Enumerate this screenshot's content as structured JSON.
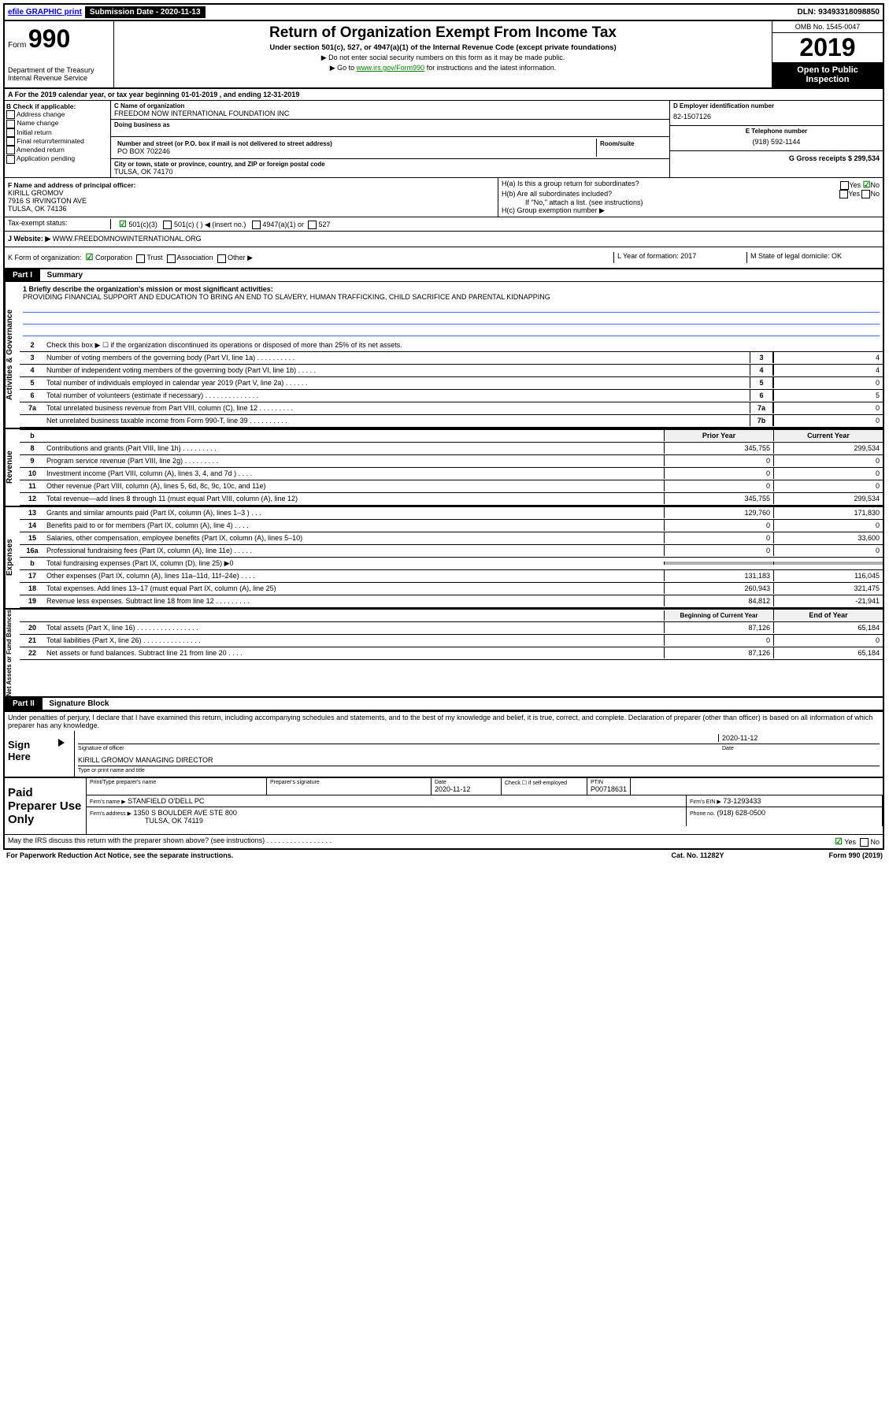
{
  "top": {
    "efile": "efile GRAPHIC print",
    "submission": "Submission Date - 2020-11-13",
    "dln": "DLN: 93493318098850"
  },
  "header": {
    "formLabel": "Form",
    "form990": "990",
    "dept1": "Department of the Treasury",
    "dept2": "Internal Revenue Service",
    "title": "Return of Organization Exempt From Income Tax",
    "subtitle": "Under section 501(c), 527, or 4947(a)(1) of the Internal Revenue Code (except private foundations)",
    "inst1": "▶ Do not enter social security numbers on this form as it may be made public.",
    "inst2a": "▶ Go to ",
    "inst2link": "www.irs.gov/Form990",
    "inst2b": " for instructions and the latest information.",
    "omb": "OMB No. 1545-0047",
    "year": "2019",
    "public": "Open to Public Inspection"
  },
  "period": "A For the 2019 calendar year, or tax year beginning 01-01-2019    , and ending 12-31-2019",
  "checkB": {
    "label": "B Check if applicable:",
    "items": [
      "Address change",
      "Name change",
      "Initial return",
      "Final return/terminated",
      "Amended return",
      "Application pending"
    ]
  },
  "org": {
    "nameLabel": "C Name of organization",
    "name": "FREEDOM NOW INTERNATIONAL FOUNDATION INC",
    "dbaLabel": "Doing business as",
    "addrLabel": "Number and street (or P.O. box if mail is not delivered to street address)",
    "addr": "PO BOX 702246",
    "roomLabel": "Room/suite",
    "cityLabel": "City or town, state or province, country, and ZIP or foreign postal code",
    "city": "TULSA, OK  74170"
  },
  "right": {
    "einLabel": "D Employer identification number",
    "ein": "82-1507126",
    "phoneLabel": "E Telephone number",
    "phone": "(918) 592-1144",
    "grossLabel": "G Gross receipts $ 299,534"
  },
  "officer": {
    "label": "F  Name and address of principal officer:",
    "name": "KIRILL GROMOV",
    "addr": "7916 S IRVINGTON AVE",
    "city": "TULSA, OK  74136"
  },
  "hSection": {
    "ha": "H(a)  Is this a group return for subordinates?",
    "hb": "H(b)  Are all subordinates included?",
    "hbNote": "If \"No,\" attach a list. (see instructions)",
    "hc": "H(c)  Group exemption number ▶",
    "yes": "Yes",
    "no": "No"
  },
  "taxStatus": {
    "label": "Tax-exempt status:",
    "opts": [
      "501(c)(3)",
      "501(c) (  ) ◀ (insert no.)",
      "4947(a)(1) or",
      "527"
    ]
  },
  "website": {
    "label": "J  Website: ▶",
    "value": "WWW.FREEDOMNOWINTERNATIONAL.ORG"
  },
  "kRow": {
    "label": "K Form of organization:",
    "opts": [
      "Corporation",
      "Trust",
      "Association",
      "Other ▶"
    ],
    "yearLabel": "L Year of formation: 2017",
    "stateLabel": "M State of legal domicile: OK"
  },
  "part1": {
    "header": "Part I",
    "title": "Summary",
    "mission": "1  Briefly describe the organization's mission or most significant activities:",
    "missionText": "PROVIDING FINANCIAL SUPPORT AND EDUCATION TO BRING AN END TO SLAVERY, HUMAN TRAFFICKING, CHILD SACRIFICE AND PARENTAL KIDNAPPING"
  },
  "governance": {
    "sideLabel": "Activities & Governance",
    "line2": "Check this box ▶ ☐ if the organization discontinued its operations or disposed of more than 25% of its net assets.",
    "lines": [
      {
        "n": "3",
        "t": "Number of voting members of the governing body (Part VI, line 1a)  .  .  .  .  .  .  .  .  .  .",
        "b": "3",
        "v": "4"
      },
      {
        "n": "4",
        "t": "Number of independent voting members of the governing body (Part VI, line 1b)  .  .  .  .  .",
        "b": "4",
        "v": "4"
      },
      {
        "n": "5",
        "t": "Total number of individuals employed in calendar year 2019 (Part V, line 2a)  .  .  .  .  .  .",
        "b": "5",
        "v": "0"
      },
      {
        "n": "6",
        "t": "Total number of volunteers (estimate if necessary)   .  .  .  .  .  .  .  .  .  .  .  .  .  .",
        "b": "6",
        "v": "5"
      },
      {
        "n": "7a",
        "t": "Total unrelated business revenue from Part VIII, column (C), line 12  .  .  .  .  .  .  .  .  .",
        "b": "7a",
        "v": "0"
      },
      {
        "n": "",
        "t": "Net unrelated business taxable income from Form 990-T, line 39   .  .  .  .  .  .  .  .  .  .",
        "b": "7b",
        "v": "0"
      }
    ]
  },
  "revenue": {
    "sideLabel": "Revenue",
    "priorHeader": "Prior Year",
    "currentHeader": "Current Year",
    "lines": [
      {
        "n": "8",
        "t": "Contributions and grants (Part VIII, line 1h)   .  .  .  .  .  .  .  .  .",
        "p": "345,755",
        "c": "299,534"
      },
      {
        "n": "9",
        "t": "Program service revenue (Part VIII, line 2g)   .  .  .  .  .  .  .  .  .",
        "p": "0",
        "c": "0"
      },
      {
        "n": "10",
        "t": "Investment income (Part VIII, column (A), lines 3, 4, and 7d )   .  .  .  .",
        "p": "0",
        "c": "0"
      },
      {
        "n": "11",
        "t": "Other revenue (Part VIII, column (A), lines 5, 6d, 8c, 9c, 10c, and 11e)",
        "p": "0",
        "c": "0"
      },
      {
        "n": "12",
        "t": "Total revenue—add lines 8 through 11 (must equal Part VIII, column (A), line 12)",
        "p": "345,755",
        "c": "299,534"
      }
    ]
  },
  "expenses": {
    "sideLabel": "Expenses",
    "lines": [
      {
        "n": "13",
        "t": "Grants and similar amounts paid (Part IX, column (A), lines 1–3 )  .   .   .",
        "p": "129,760",
        "c": "171,830"
      },
      {
        "n": "14",
        "t": "Benefits paid to or for members (Part IX, column (A), line 4)  .   .   .   .",
        "p": "0",
        "c": "0"
      },
      {
        "n": "15",
        "t": "Salaries, other compensation, employee benefits (Part IX, column (A), lines 5–10)",
        "p": "0",
        "c": "33,600"
      },
      {
        "n": "16a",
        "t": "Professional fundraising fees (Part IX, column (A), line 11e)  .  .  .  .  .",
        "p": "0",
        "c": "0"
      },
      {
        "n": "b",
        "t": "Total fundraising expenses (Part IX, column (D), line 25) ▶0",
        "p": "",
        "c": "",
        "gray": true
      },
      {
        "n": "17",
        "t": "Other expenses (Part IX, column (A), lines 11a–11d, 11f–24e)  .   .   .   .",
        "p": "131,183",
        "c": "116,045"
      },
      {
        "n": "18",
        "t": "Total expenses. Add lines 13–17 (must equal Part IX, column (A), line 25)",
        "p": "260,943",
        "c": "321,475"
      },
      {
        "n": "19",
        "t": "Revenue less expenses. Subtract line 18 from line 12  .  .  .  .  .  .  .  .  .",
        "p": "84,812",
        "c": "-21,941"
      }
    ]
  },
  "netAssets": {
    "sideLabel": "Net Assets or Fund Balances",
    "beginHeader": "Beginning of Current Year",
    "endHeader": "End of Year",
    "lines": [
      {
        "n": "20",
        "t": "Total assets (Part X, line 16)  .  .  .  .  .  .  .  .  .  .  .  .  .  .  .  .",
        "p": "87,126",
        "c": "65,184"
      },
      {
        "n": "21",
        "t": "Total liabilities (Part X, line 26)  .  .  .  .  .  .  .  .  .  .  .  .  .  .  .",
        "p": "0",
        "c": "0"
      },
      {
        "n": "22",
        "t": "Net assets or fund balances. Subtract line 21 from line 20  .   .   .   .",
        "p": "87,126",
        "c": "65,184"
      }
    ]
  },
  "part2": {
    "header": "Part II",
    "title": "Signature Block",
    "declaration": "Under penalties of perjury, I declare that I have examined this return, including accompanying schedules and statements, and to the best of my knowledge and belief, it is true, correct, and complete. Declaration of preparer (other than officer) is based on all information of which preparer has any knowledge."
  },
  "sign": {
    "label": "Sign Here",
    "sigLabel": "Signature of officer",
    "date": "2020-11-12",
    "dateLabel": "Date",
    "name": "KIRILL GROMOV MANAGING DIRECTOR",
    "typeLabel": "Type or print name and title"
  },
  "paid": {
    "label": "Paid Preparer Use Only",
    "nameLabel": "Print/Type preparer's name",
    "sigLabel": "Preparer's signature",
    "dateLabel": "Date",
    "date": "2020-11-12",
    "checkLabel": "Check ☐ if self-employed",
    "ptinLabel": "PTIN",
    "ptin": "P00718631",
    "firmLabel": "Firm's name    ▶",
    "firm": "STANFIELD O'DELL PC",
    "feinLabel": "Firm's EIN ▶",
    "fein": "73-1293433",
    "addrLabel": "Firm's address ▶",
    "addr1": "1350 S BOULDER AVE STE 800",
    "addr2": "TULSA, OK  74119",
    "phoneLabel": "Phone no.",
    "phone": "(918) 628-0500"
  },
  "footer": {
    "discuss": "May the IRS discuss this return with the preparer shown above? (see instructions)  .  .  .  .  .  .  .  .  .  .  .  .  .  .  .  .  .",
    "yes": "Yes",
    "no": "No",
    "paperwork": "For Paperwork Reduction Act Notice, see the separate instructions.",
    "cat": "Cat. No. 11282Y",
    "form": "Form 990 (2019)"
  }
}
